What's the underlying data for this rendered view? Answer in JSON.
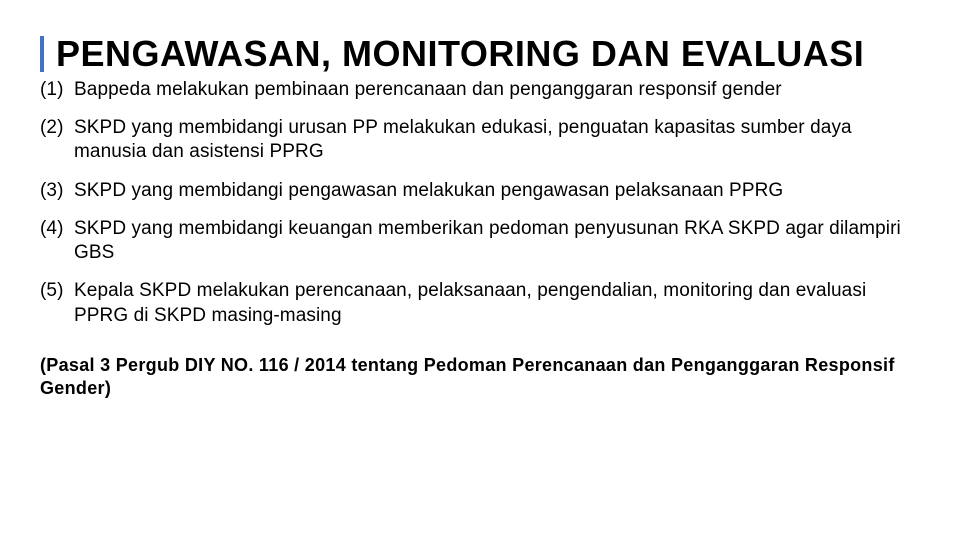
{
  "slide": {
    "title": "PENGAWASAN, MONITORING DAN EVALUASI",
    "accent_color": "#4472c4",
    "background_color": "#ffffff",
    "text_color": "#000000",
    "title_fontsize": 36,
    "body_fontsize": 19,
    "footer_fontsize": 18,
    "items": [
      {
        "num": "(1)",
        "text": "Bappeda melakukan pembinaan perencanaan dan penganggaran responsif gender"
      },
      {
        "num": "(2)",
        "text": "SKPD yang membidangi urusan PP melakukan edukasi, penguatan kapasitas sumber daya manusia dan asistensi PPRG"
      },
      {
        "num": "(3)",
        "text": "SKPD yang membidangi pengawasan melakukan pengawasan pelaksanaan PPRG"
      },
      {
        "num": "(4)",
        "text": "SKPD yang membidangi keuangan memberikan pedoman penyusunan RKA SKPD agar dilampiri GBS"
      },
      {
        "num": "(5)",
        "text": "Kepala SKPD melakukan perencanaan, pelaksanaan, pengendalian, monitoring dan evaluasi PPRG di SKPD masing-masing"
      }
    ],
    "footer": "(Pasal 3 Pergub DIY NO. 116 / 2014 tentang Pedoman Perencanaan dan Penganggaran Responsif Gender)"
  }
}
